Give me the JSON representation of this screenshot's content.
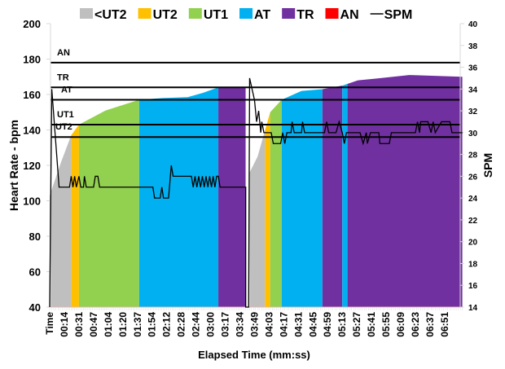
{
  "chart_data": {
    "type": "area",
    "title": "",
    "xlabel": "Elapsed Time (mm:ss)",
    "ylabel": "Heart Rate - bpm",
    "y2label": "SPM",
    "ylim": [
      40,
      200
    ],
    "y2lim": [
      14,
      40
    ],
    "yticks": [
      40,
      60,
      80,
      100,
      120,
      140,
      160,
      180,
      200
    ],
    "y2ticks": [
      14,
      16,
      18,
      20,
      22,
      24,
      26,
      28,
      30,
      32,
      34,
      36,
      38,
      40
    ],
    "xlim_end": "07:08",
    "xtick_labels": [
      "Time",
      "00:14",
      "00:31",
      "00:47",
      "01:04",
      "01:20",
      "01:37",
      "01:54",
      "02:12",
      "02:28",
      "02:44",
      "03:00",
      "03:17",
      "03:34",
      "03:49",
      "04:03",
      "04:17",
      "04:31",
      "04:45",
      "04:59",
      "05:13",
      "05:27",
      "05:41",
      "05:55",
      "06:09",
      "06:23",
      "06:37",
      "06:51"
    ],
    "legend": {
      "placement": "top",
      "entries": [
        {
          "label": "<UT2",
          "color": "#bfbfbf",
          "kind": "swatch"
        },
        {
          "label": "UT2",
          "color": "#ffc000",
          "kind": "swatch"
        },
        {
          "label": "UT1",
          "color": "#92d050",
          "kind": "swatch"
        },
        {
          "label": "AT",
          "color": "#00b0f0",
          "kind": "swatch"
        },
        {
          "label": "TR",
          "color": "#7030a0",
          "kind": "swatch"
        },
        {
          "label": "AN",
          "color": "#ff0000",
          "kind": "swatch"
        },
        {
          "label": "SPM",
          "color": "#000000",
          "kind": "line"
        }
      ]
    },
    "thresholds": [
      {
        "label": "AN",
        "bpm": 178
      },
      {
        "label": "TR",
        "bpm": 164
      },
      {
        "label": "AT",
        "bpm": 157
      },
      {
        "label": "UT1",
        "bpm": 143
      },
      {
        "label": "UT2",
        "bpm": 136
      }
    ],
    "zones": [
      {
        "zone": "<UT2",
        "start": "00:00",
        "end": "00:22"
      },
      {
        "zone": "UT2",
        "start": "00:22",
        "end": "00:31"
      },
      {
        "zone": "UT1",
        "start": "00:31",
        "end": "01:39"
      },
      {
        "zone": "AT",
        "start": "01:39",
        "end": "03:09"
      },
      {
        "zone": "TR",
        "start": "03:09",
        "end": "03:40"
      },
      {
        "zone": "<UT2",
        "start": "03:44",
        "end": "03:59"
      },
      {
        "zone": "UT2",
        "start": "03:59",
        "end": "04:04"
      },
      {
        "zone": "UT1",
        "start": "04:04",
        "end": "04:15"
      },
      {
        "zone": "AT",
        "start": "04:15",
        "end": "04:54"
      },
      {
        "zone": "TR",
        "start": "04:54",
        "end": "05:13"
      },
      {
        "zone": "AT",
        "start": "05:13",
        "end": "05:18"
      },
      {
        "zone": "TR",
        "start": "05:18",
        "end": "07:08"
      }
    ],
    "heart_rate": [
      [
        [
          "00:00",
          103
        ],
        [
          "00:11",
          122
        ],
        [
          "00:22",
          137
        ],
        [
          "00:31",
          143
        ],
        [
          "01:01",
          151
        ],
        [
          "01:39",
          157
        ],
        [
          "02:07",
          158
        ],
        [
          "02:35",
          158.5
        ],
        [
          "02:52",
          161
        ],
        [
          "03:09",
          164
        ],
        [
          "03:40",
          164
        ]
      ],
      [
        [
          "03:44",
          116
        ],
        [
          "03:52",
          125
        ],
        [
          "04:04",
          150
        ],
        [
          "04:15",
          157
        ],
        [
          "04:34",
          162
        ],
        [
          "04:54",
          163
        ],
        [
          "05:13",
          165
        ],
        [
          "05:28",
          168
        ],
        [
          "05:46",
          169
        ],
        [
          "06:17",
          171
        ],
        [
          "07:08",
          170
        ]
      ]
    ],
    "spm": [
      [
        "00:00",
        14
      ],
      [
        "00:02",
        34
      ],
      [
        "00:09",
        25
      ],
      [
        "00:20",
        25
      ],
      [
        "00:22",
        26
      ],
      [
        "00:24",
        25
      ],
      [
        "00:26",
        26
      ],
      [
        "00:28",
        25
      ],
      [
        "00:31",
        26
      ],
      [
        "00:33",
        25
      ],
      [
        "00:36",
        25
      ],
      [
        "00:37",
        26
      ],
      [
        "00:39",
        25
      ],
      [
        "00:47",
        25
      ],
      [
        "00:49",
        26
      ],
      [
        "00:52",
        26
      ],
      [
        "00:54",
        25
      ],
      [
        "01:55",
        25
      ],
      [
        "01:57",
        24
      ],
      [
        "02:04",
        24
      ],
      [
        "02:06",
        25
      ],
      [
        "02:08",
        24
      ],
      [
        "02:14",
        24
      ],
      [
        "02:17",
        27
      ],
      [
        "02:19",
        26
      ],
      [
        "02:39",
        26
      ],
      [
        "02:41",
        25
      ],
      [
        "02:43",
        26
      ],
      [
        "02:45",
        25
      ],
      [
        "02:47",
        26
      ],
      [
        "02:49",
        25
      ],
      [
        "02:51",
        26
      ],
      [
        "02:53",
        25
      ],
      [
        "02:55",
        26
      ],
      [
        "02:57",
        25
      ],
      [
        "02:59",
        26
      ],
      [
        "03:01",
        25
      ],
      [
        "03:03",
        26
      ],
      [
        "03:05",
        25
      ],
      [
        "03:07",
        26
      ],
      [
        "03:09",
        26
      ],
      [
        "03:11",
        25
      ],
      [
        "03:40",
        25
      ],
      [
        "03:40",
        14
      ],
      [
        "03:43",
        14
      ],
      [
        "03:44",
        35
      ],
      [
        "03:49",
        33
      ],
      [
        "03:51",
        31
      ],
      [
        "03:53",
        32
      ],
      [
        "03:55",
        30
      ],
      [
        "03:56",
        31
      ],
      [
        "03:58",
        30
      ],
      [
        "04:05",
        30
      ],
      [
        "04:07",
        29
      ],
      [
        "04:14",
        29
      ],
      [
        "04:16",
        30
      ],
      [
        "04:18",
        29
      ],
      [
        "04:20",
        30
      ],
      [
        "04:24",
        30
      ],
      [
        "04:25",
        31
      ],
      [
        "04:27",
        30
      ],
      [
        "04:34",
        30
      ],
      [
        "04:35",
        31
      ],
      [
        "04:37",
        30
      ],
      [
        "04:56",
        30
      ],
      [
        "04:58",
        31
      ],
      [
        "05:00",
        30
      ],
      [
        "05:07",
        30
      ],
      [
        "05:10",
        31
      ],
      [
        "05:13",
        30
      ],
      [
        "05:15",
        29
      ],
      [
        "05:17",
        30
      ],
      [
        "05:30",
        30
      ],
      [
        "05:33",
        29
      ],
      [
        "05:36",
        30
      ],
      [
        "05:37",
        29
      ],
      [
        "05:40",
        30
      ],
      [
        "05:48",
        30
      ],
      [
        "05:49",
        29
      ],
      [
        "05:58",
        29
      ],
      [
        "06:00",
        30
      ],
      [
        "06:23",
        30
      ],
      [
        "06:25",
        31
      ],
      [
        "06:27",
        30
      ],
      [
        "06:28",
        31
      ],
      [
        "06:35",
        31
      ],
      [
        "06:38",
        30
      ],
      [
        "06:40",
        31
      ],
      [
        "06:42",
        30
      ],
      [
        "06:48",
        31
      ],
      [
        "06:56",
        31
      ],
      [
        "06:58",
        30
      ],
      [
        "07:08",
        30
      ]
    ]
  }
}
